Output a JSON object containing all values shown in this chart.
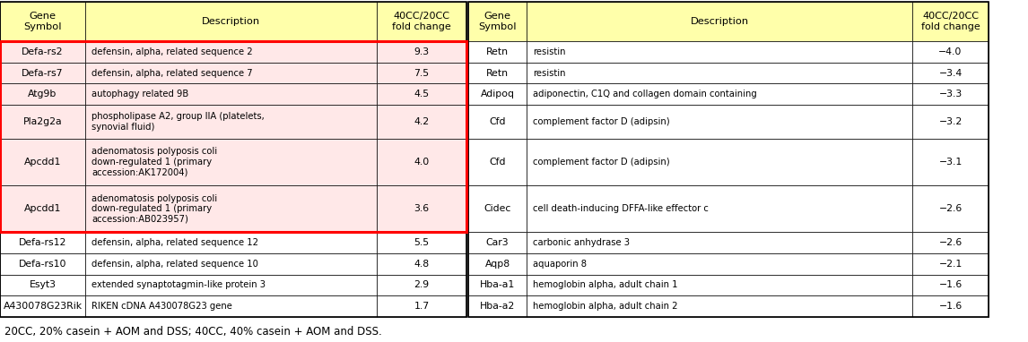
{
  "header_bg": "#FFFFAA",
  "red_highlight_bg": "#FFE8E8",
  "white_bg": "#FFFFFF",
  "red_border_color": "#FF0000",
  "black": "#000000",
  "left_rows": [
    {
      "gene": "Defa-rs2",
      "desc": "defensin, alpha, related sequence 2",
      "fold": "9.3",
      "highlight": true
    },
    {
      "gene": "Defa-rs7",
      "desc": "defensin, alpha, related sequence 7",
      "fold": "7.5",
      "highlight": true
    },
    {
      "gene": "Atg9b",
      "desc": "autophagy related 9B",
      "fold": "4.5",
      "highlight": true
    },
    {
      "gene": "Pla2g2a",
      "desc": "phospholipase A2, group IIA (platelets,\nsynovial fluid)",
      "fold": "4.2",
      "highlight": true
    },
    {
      "gene": "Apcdd1",
      "desc": "adenomatosis polyposis coli\ndown-regulated 1 (primary\naccession:AK172004)",
      "fold": "4.0",
      "highlight": true
    },
    {
      "gene": "Apcdd1",
      "desc": "adenomatosis polyposis coli\ndown-regulated 1 (primary\naccession:AB023957)",
      "fold": "3.6",
      "highlight": true
    },
    {
      "gene": "Defa-rs12",
      "desc": "defensin, alpha, related sequence 12",
      "fold": "5.5",
      "highlight": false
    },
    {
      "gene": "Defa-rs10",
      "desc": "defensin, alpha, related sequence 10",
      "fold": "4.8",
      "highlight": false
    },
    {
      "gene": "Esyt3",
      "desc": "extended synaptotagmin-like protein 3",
      "fold": "2.9",
      "highlight": false
    },
    {
      "gene": "A430078G23Rik",
      "desc": "RIKEN cDNA A430078G23 gene",
      "fold": "1.7",
      "highlight": false
    }
  ],
  "right_rows": [
    {
      "gene": "Retn",
      "desc": "resistin",
      "fold": "−4.0"
    },
    {
      "gene": "Retn",
      "desc": "resistin",
      "fold": "−3.4"
    },
    {
      "gene": "Adipoq",
      "desc": "adiponectin, C1Q and collagen domain containing",
      "fold": "−3.3"
    },
    {
      "gene": "Cfd",
      "desc": "complement factor D (adipsin)",
      "fold": "−3.2"
    },
    {
      "gene": "Cfd",
      "desc": "complement factor D (adipsin)",
      "fold": "−3.1"
    },
    {
      "gene": "Cidec",
      "desc": "cell death-inducing DFFA-like effector c",
      "fold": "−2.6"
    },
    {
      "gene": "Car3",
      "desc": "carbonic anhydrase 3",
      "fold": "−2.6"
    },
    {
      "gene": "Aqp8",
      "desc": "aquaporin 8",
      "fold": "−2.1"
    },
    {
      "gene": "Hba-a1",
      "desc": "hemoglobin alpha, adult chain 1",
      "fold": "−1.6"
    },
    {
      "gene": "Hba-a2",
      "desc": "hemoglobin alpha, adult chain 2",
      "fold": "−1.6"
    }
  ],
  "footnote": "20CC, 20% casein + AOM and DSS; 40CC, 40% casein + AOM and DSS.",
  "fig_width": 11.46,
  "fig_height": 3.82,
  "dpi": 100
}
